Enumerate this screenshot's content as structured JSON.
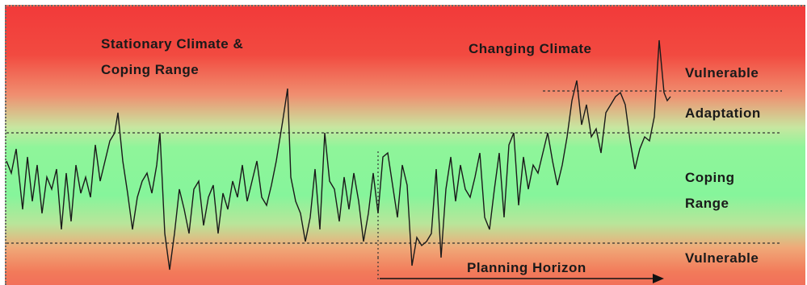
{
  "labels": {
    "stationary_line1": "Stationary Climate &",
    "stationary_line2": "Coping Range",
    "changing": "Changing Climate",
    "vulnerable_top": "Vulnerable",
    "adaptation": "Adaptation",
    "coping_line1": "Coping",
    "coping_line2": "Range",
    "vulnerable_bottom": "Vulnerable",
    "planning_horizon": "Planning Horizon"
  },
  "colors": {
    "vulnerable_zone": "#f23a3a",
    "coping_zone": "#86f59b",
    "series_line": "#1a1a1a"
  }
}
